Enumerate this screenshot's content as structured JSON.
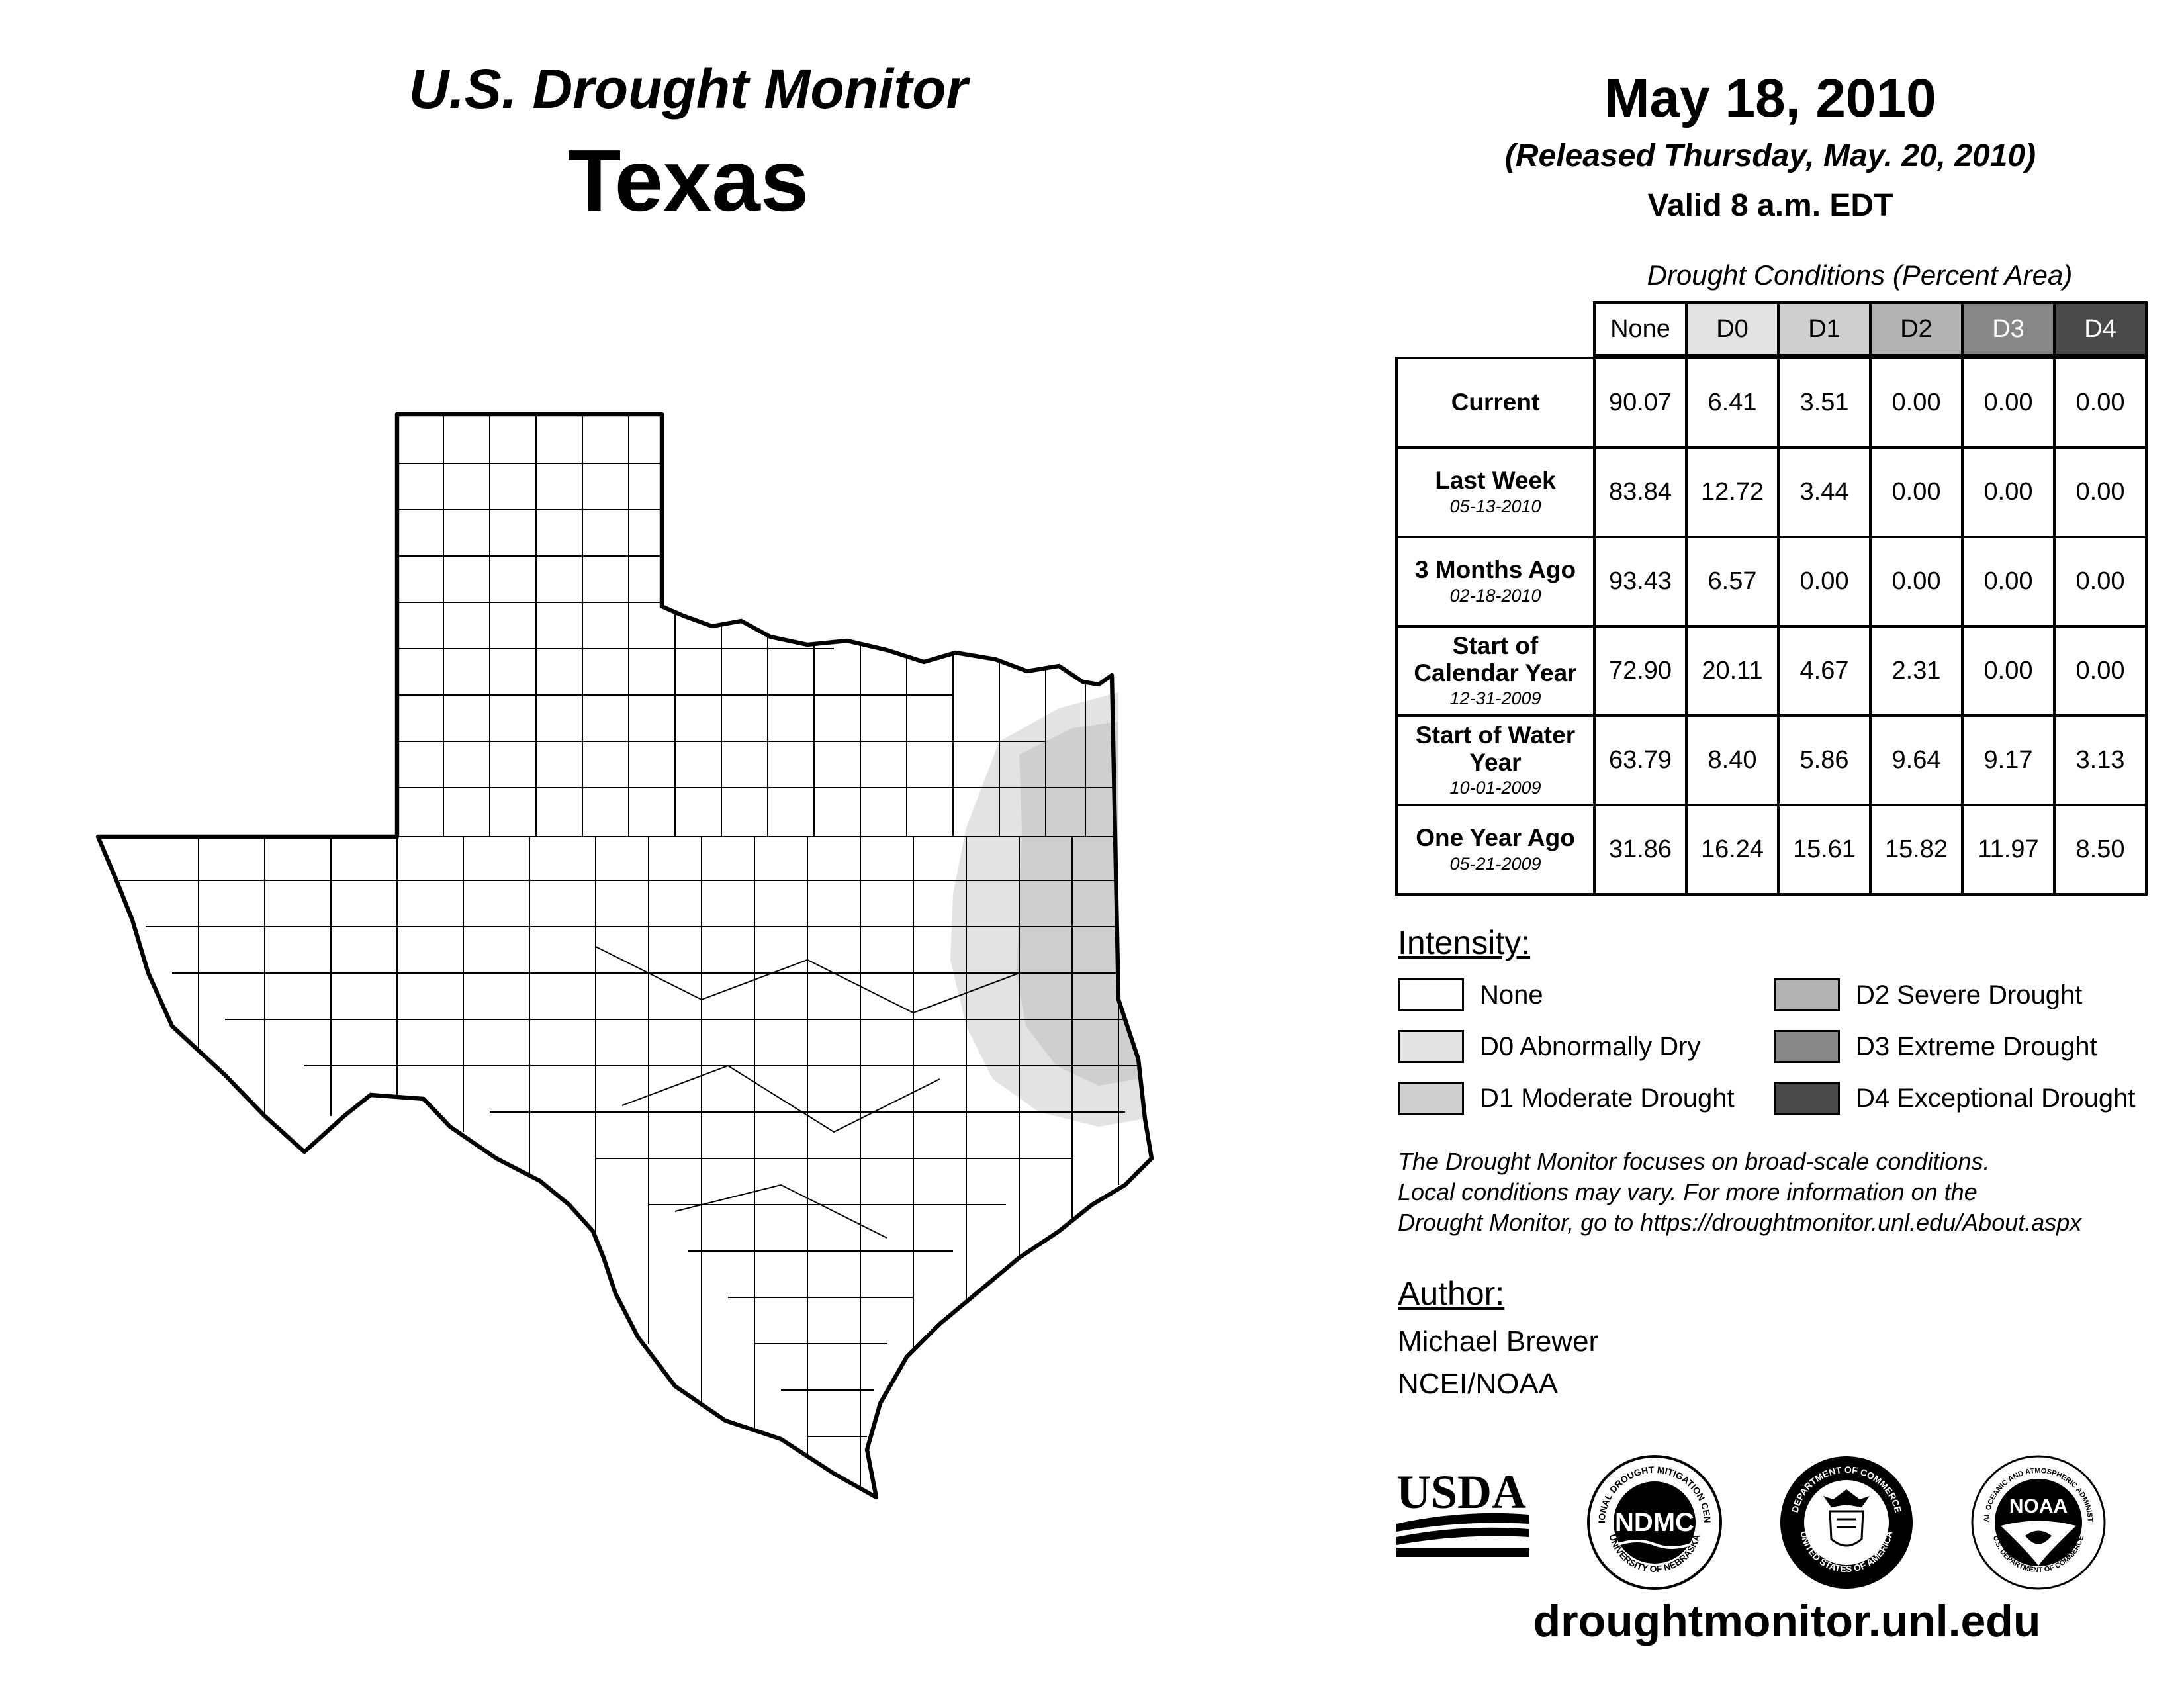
{
  "header": {
    "subtitle": "U.S. Drought Monitor",
    "state": "Texas",
    "date": "May 18, 2010",
    "released": "(Released Thursday, May. 20, 2010)",
    "valid": "Valid 8 a.m. EDT"
  },
  "table": {
    "title": "Drought Conditions (Percent Area)",
    "columns": [
      "None",
      "D0",
      "D1",
      "D2",
      "D3",
      "D4"
    ],
    "rows": [
      {
        "label": "Current",
        "date": "",
        "values": [
          "90.07",
          "6.41",
          "3.51",
          "0.00",
          "0.00",
          "0.00"
        ]
      },
      {
        "label": "Last Week",
        "date": "05-13-2010",
        "values": [
          "83.84",
          "12.72",
          "3.44",
          "0.00",
          "0.00",
          "0.00"
        ]
      },
      {
        "label": "3 Months Ago",
        "date": "02-18-2010",
        "values": [
          "93.43",
          "6.57",
          "0.00",
          "0.00",
          "0.00",
          "0.00"
        ]
      },
      {
        "label": "Start of Calendar Year",
        "date": "12-31-2009",
        "values": [
          "72.90",
          "20.11",
          "4.67",
          "2.31",
          "0.00",
          "0.00"
        ]
      },
      {
        "label": "Start of Water Year",
        "date": "10-01-2009",
        "values": [
          "63.79",
          "8.40",
          "5.86",
          "9.64",
          "9.17",
          "3.13"
        ]
      },
      {
        "label": "One Year Ago",
        "date": "05-21-2009",
        "values": [
          "31.86",
          "16.24",
          "15.61",
          "15.82",
          "11.97",
          "8.50"
        ]
      }
    ]
  },
  "legend": {
    "title": "Intensity:",
    "items": [
      {
        "label": "None",
        "color": "#ffffff"
      },
      {
        "label": "D0 Abnormally Dry",
        "color": "#e3e3e3"
      },
      {
        "label": "D1 Moderate Drought",
        "color": "#cfcfcf"
      },
      {
        "label": "D2 Severe Drought",
        "color": "#b2b2b2"
      },
      {
        "label": "D3 Extreme Drought",
        "color": "#878787"
      },
      {
        "label": "D4 Exceptional Drought",
        "color": "#4a4a4a"
      }
    ]
  },
  "note": {
    "line1": "The Drought Monitor focuses on broad-scale conditions.",
    "line2": "Local conditions may vary. For more information on the",
    "line3": "Drought Monitor, go to https://droughtmonitor.unl.edu/About.aspx"
  },
  "author": {
    "title": "Author:",
    "name": "Michael Brewer",
    "org": "NCEI/NOAA"
  },
  "logos": {
    "usda": "USDA",
    "ndmc": "NDMC",
    "ndmc_ring_top": "NATIONAL DROUGHT MITIGATION CENTER",
    "ndmc_ring_bottom": "UNIVERSITY OF NEBRASKA",
    "doc_ring_top": "DEPARTMENT OF COMMERCE",
    "doc_ring_bottom": "UNITED STATES OF AMERICA",
    "noaa": "NOAA",
    "noaa_ring_top": "NATIONAL OCEANIC AND ATMOSPHERIC ADMINISTRATION",
    "noaa_ring_bottom": "U.S. DEPARTMENT OF COMMERCE"
  },
  "website": "droughtmonitor.unl.edu"
}
